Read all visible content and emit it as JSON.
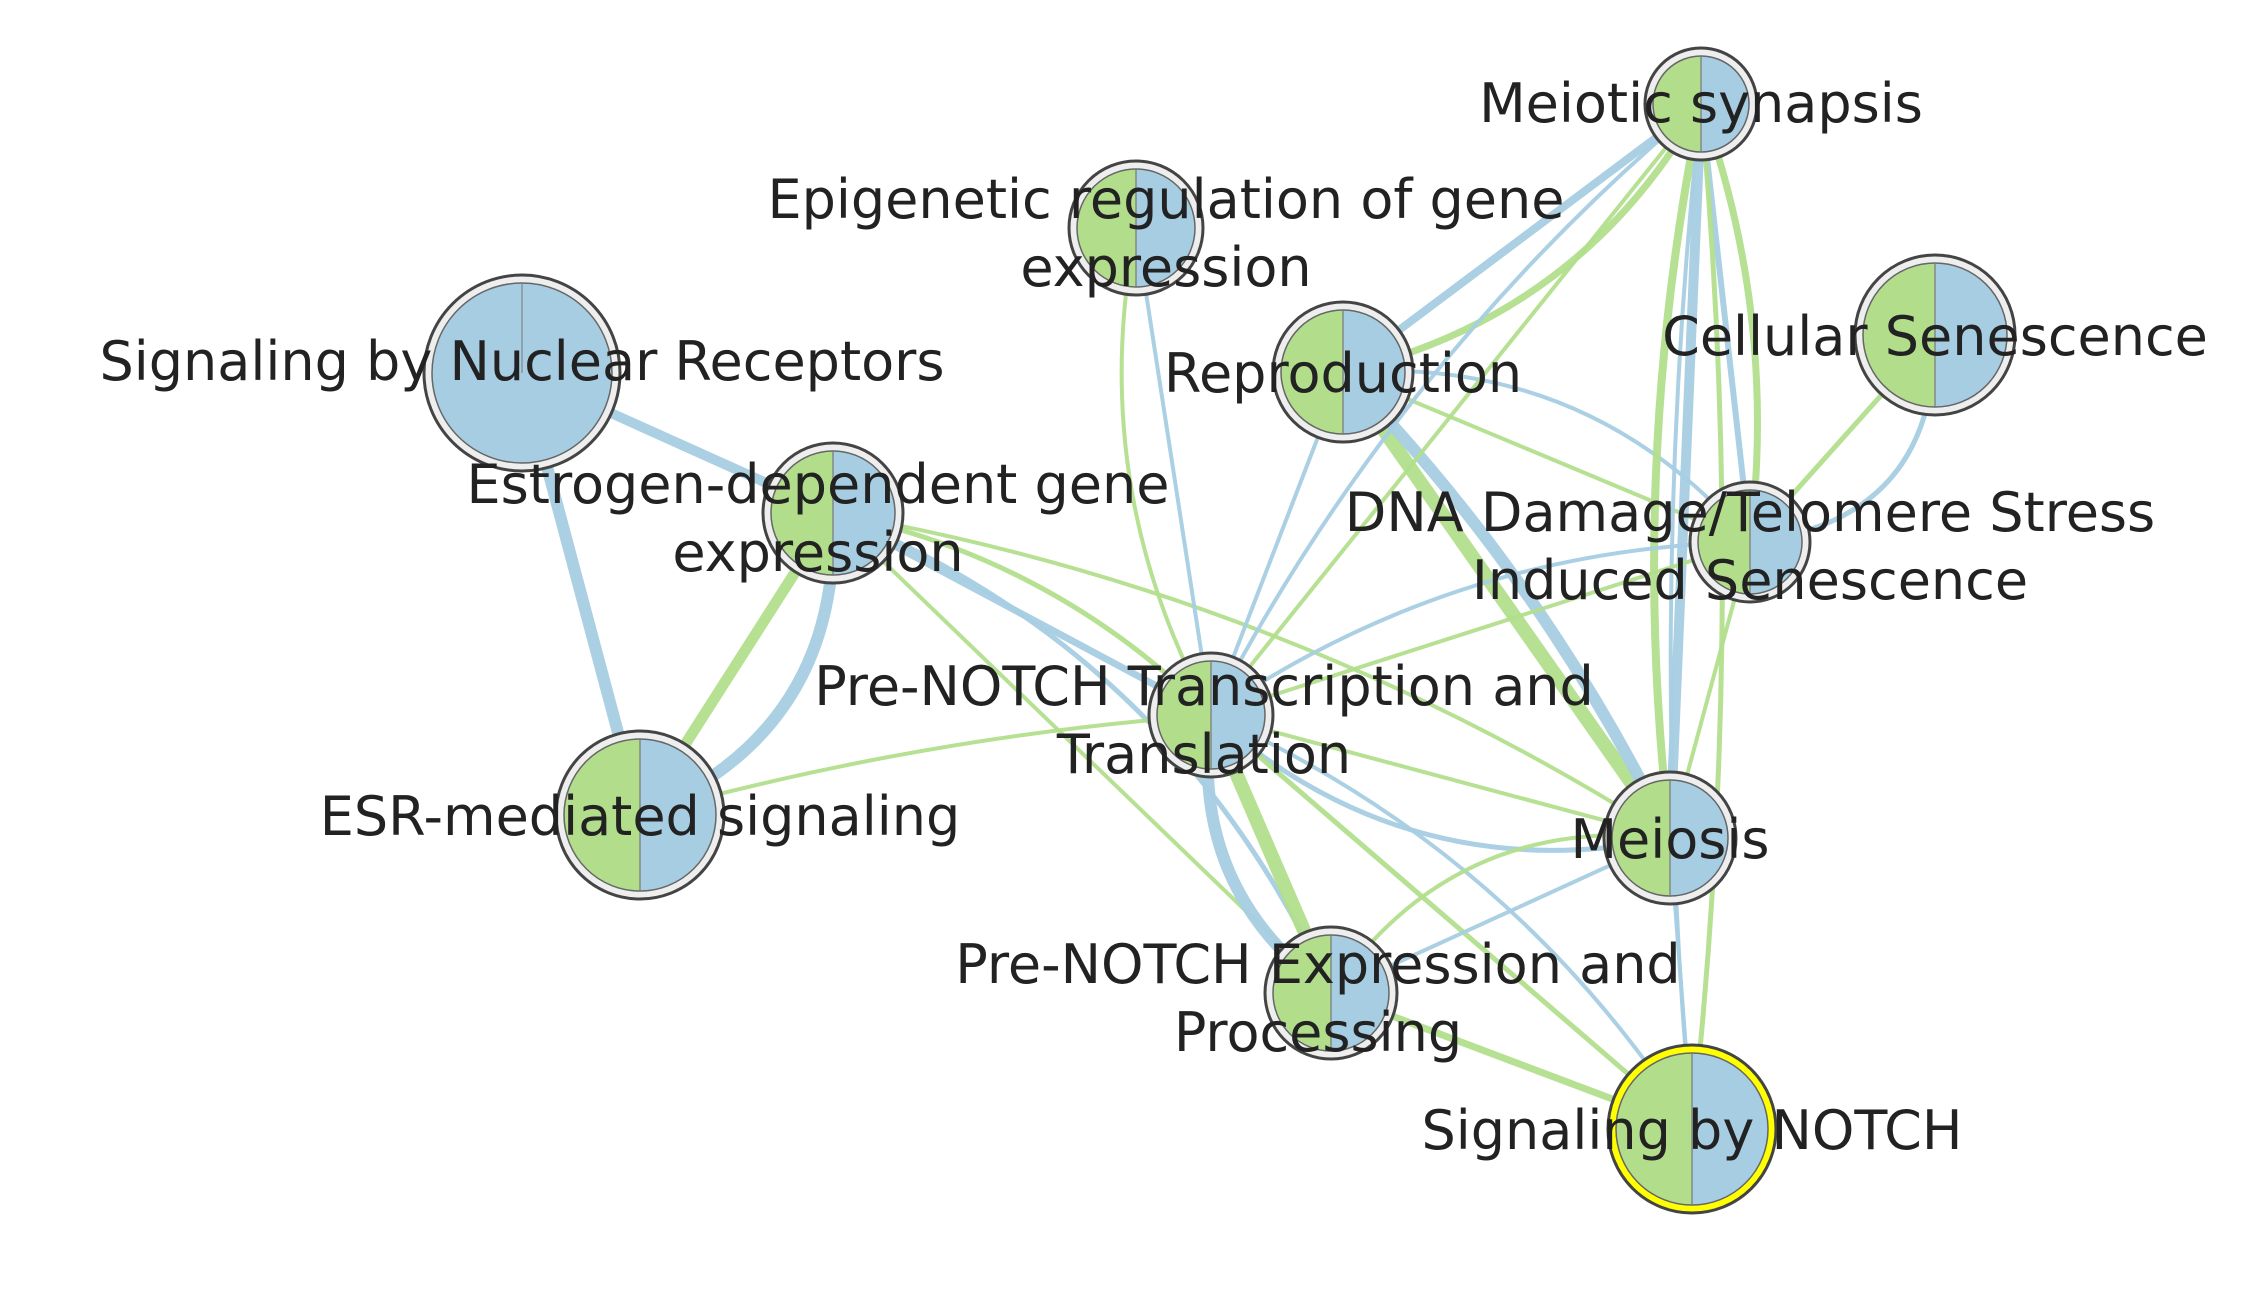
{
  "colors": {
    "green": "#b2de8c",
    "blue": "#a7cde3",
    "ring": "#eeeeee",
    "border": "#555555",
    "highlight": "#ffff00",
    "text": "#222222"
  },
  "nodes": [
    {
      "id": "meiotic",
      "label_lines": [
        "Meiotic synapsis"
      ],
      "slices": [
        "green",
        "blue"
      ]
    },
    {
      "id": "epigenetic",
      "label_lines": [
        "Epigenetic regulation of gene",
        "expression"
      ],
      "slices": [
        "green",
        "blue"
      ]
    },
    {
      "id": "nuclear",
      "label_lines": [
        "Signaling by Nuclear Receptors"
      ],
      "slices": [
        "blue"
      ]
    },
    {
      "id": "cellular",
      "label_lines": [
        "Cellular Senescence"
      ],
      "slices": [
        "green",
        "blue"
      ]
    },
    {
      "id": "reproduction",
      "label_lines": [
        "Reproduction"
      ],
      "slices": [
        "green",
        "blue"
      ]
    },
    {
      "id": "estrogen",
      "label_lines": [
        "Estrogen-dependent gene",
        "expression"
      ],
      "slices": [
        "green",
        "blue"
      ]
    },
    {
      "id": "dna",
      "label_lines": [
        "DNA Damage/Telomere Stress",
        "Induced Senescence"
      ],
      "slices": [
        "green",
        "blue"
      ]
    },
    {
      "id": "prenotch_tt",
      "label_lines": [
        "Pre-NOTCH Transcription and",
        "Translation"
      ],
      "slices": [
        "green",
        "blue"
      ]
    },
    {
      "id": "esr",
      "label_lines": [
        "ESR-mediated signaling"
      ],
      "slices": [
        "green",
        "blue"
      ]
    },
    {
      "id": "meiosis",
      "label_lines": [
        "Meiosis"
      ],
      "slices": [
        "green",
        "blue"
      ]
    },
    {
      "id": "prenotch_ep",
      "label_lines": [
        "Pre-NOTCH Expression and",
        "Processing"
      ],
      "slices": [
        "green",
        "blue"
      ]
    },
    {
      "id": "notch",
      "label_lines": [
        "Signaling by NOTCH"
      ],
      "slices": [
        "green",
        "blue"
      ],
      "highlighted": true
    }
  ],
  "edges": [
    {
      "source": "nuclear",
      "target": "esr",
      "color": "blue",
      "weight": 12
    },
    {
      "source": "nuclear",
      "target": "estrogen",
      "color": "blue",
      "weight": 10
    },
    {
      "source": "esr",
      "target": "estrogen",
      "color": "green",
      "weight": 11
    },
    {
      "source": "esr",
      "target": "estrogen",
      "color": "blue",
      "weight": 12,
      "curve": 0.35
    },
    {
      "source": "estrogen",
      "target": "prenotch_tt",
      "color": "blue",
      "weight": 7
    },
    {
      "source": "estrogen",
      "target": "prenotch_tt",
      "color": "green",
      "weight": 5,
      "curve": -0.15
    },
    {
      "source": "estrogen",
      "target": "prenotch_ep",
      "color": "blue",
      "weight": 5,
      "curve": -0.2
    },
    {
      "source": "estrogen",
      "target": "prenotch_ep",
      "color": "green",
      "weight": 4
    },
    {
      "source": "estrogen",
      "target": "meiosis",
      "color": "green",
      "weight": 4,
      "curve": -0.1
    },
    {
      "source": "epigenetic",
      "target": "prenotch_tt",
      "color": "blue",
      "weight": 4
    },
    {
      "source": "epigenetic",
      "target": "prenotch_tt",
      "color": "green",
      "weight": 4,
      "curve": 0.18
    },
    {
      "source": "reproduction",
      "target": "meiotic",
      "color": "blue",
      "weight": 8
    },
    {
      "source": "reproduction",
      "target": "meiotic",
      "color": "green",
      "weight": 7,
      "curve": 0.22
    },
    {
      "source": "reproduction",
      "target": "meiosis",
      "color": "green",
      "weight": 14
    },
    {
      "source": "reproduction",
      "target": "meiosis",
      "color": "blue",
      "weight": 12,
      "curve": -0.08
    },
    {
      "source": "reproduction",
      "target": "prenotch_tt",
      "color": "blue",
      "weight": 4
    },
    {
      "source": "reproduction",
      "target": "dna",
      "color": "blue",
      "weight": 4,
      "curve": -0.25
    },
    {
      "source": "reproduction",
      "target": "dna",
      "color": "green",
      "weight": 4
    },
    {
      "source": "meiotic",
      "target": "meiosis",
      "color": "blue",
      "weight": 10
    },
    {
      "source": "meiotic",
      "target": "meiosis",
      "color": "green",
      "weight": 8,
      "curve": 0.08
    },
    {
      "source": "meiotic",
      "target": "dna",
      "color": "blue",
      "weight": 6
    },
    {
      "source": "meiotic",
      "target": "dna",
      "color": "green",
      "weight": 7,
      "curve": -0.12
    },
    {
      "source": "meiotic",
      "target": "prenotch_tt",
      "color": "green",
      "weight": 4
    },
    {
      "source": "meiotic",
      "target": "prenotch_tt",
      "color": "blue",
      "weight": 4,
      "curve": 0.1
    },
    {
      "source": "meiotic",
      "target": "notch",
      "color": "green",
      "weight": 5,
      "curve": -0.05
    },
    {
      "source": "meiotic",
      "target": "notch",
      "color": "blue",
      "weight": 4,
      "curve": 0.05
    },
    {
      "source": "cellular",
      "target": "dna",
      "color": "green",
      "weight": 5
    },
    {
      "source": "cellular",
      "target": "dna",
      "color": "blue",
      "weight": 5,
      "curve": -0.45
    },
    {
      "source": "dna",
      "target": "prenotch_tt",
      "color": "green",
      "weight": 4
    },
    {
      "source": "dna",
      "target": "prenotch_tt",
      "color": "blue",
      "weight": 4,
      "curve": 0.15
    },
    {
      "source": "dna",
      "target": "meiosis",
      "color": "green",
      "weight": 4
    },
    {
      "source": "prenotch_tt",
      "target": "prenotch_ep",
      "color": "green",
      "weight": 14
    },
    {
      "source": "prenotch_tt",
      "target": "prenotch_ep",
      "color": "blue",
      "weight": 12,
      "curve": 0.3
    },
    {
      "source": "prenotch_tt",
      "target": "meiosis",
      "color": "green",
      "weight": 4
    },
    {
      "source": "prenotch_tt",
      "target": "meiosis",
      "color": "blue",
      "weight": 5,
      "curve": 0.25
    },
    {
      "source": "prenotch_tt",
      "target": "notch",
      "color": "green",
      "weight": 5
    },
    {
      "source": "prenotch_tt",
      "target": "notch",
      "color": "blue",
      "weight": 4,
      "curve": -0.15
    },
    {
      "source": "prenotch_ep",
      "target": "notch",
      "color": "green",
      "weight": 7
    },
    {
      "source": "prenotch_ep",
      "target": "meiosis",
      "color": "blue",
      "weight": 4
    },
    {
      "source": "prenotch_ep",
      "target": "meiosis",
      "color": "green",
      "weight": 4,
      "curve": -0.3
    },
    {
      "source": "meiosis",
      "target": "notch",
      "color": "blue",
      "weight": 4
    },
    {
      "source": "esr",
      "target": "prenotch_tt",
      "color": "green",
      "weight": 4,
      "curve": -0.05
    }
  ]
}
